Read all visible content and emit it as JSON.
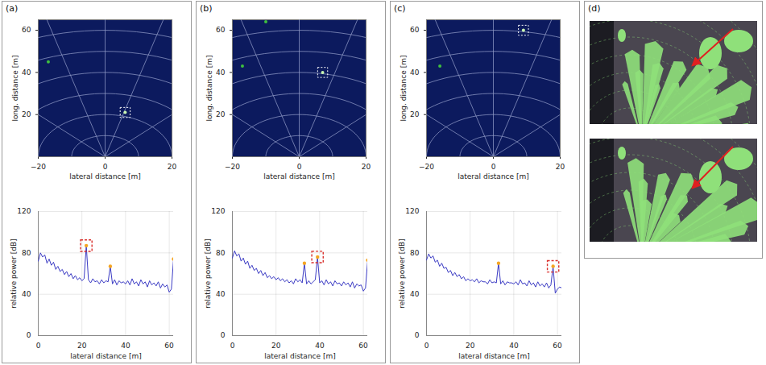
{
  "chart_data": [
    {
      "panel": "(a)",
      "type": "scatter",
      "xlabel": "lateral distance [m]",
      "ylabel": "long. distance [m]",
      "xlim": [
        -20,
        20
      ],
      "ylim": [
        0,
        65
      ],
      "xticks": [
        -20,
        0,
        20
      ],
      "yticks": [
        20,
        40,
        60
      ],
      "range_rings": [
        10,
        20,
        30,
        40,
        50,
        60
      ],
      "beam_angles": [
        -45,
        -15,
        0,
        15,
        45
      ],
      "x": [
        6,
        -17
      ],
      "y": [
        21,
        45
      ],
      "colors": [
        "#c8f5b0",
        "#3fbf3f"
      ],
      "highlight": {
        "x": 6,
        "y": 21
      }
    },
    {
      "panel": "(a)",
      "type": "line",
      "xlabel": "lateral distance [m]",
      "ylabel": "relative power [dB]",
      "xlim": [
        0,
        62
      ],
      "ylim": [
        0,
        120
      ],
      "xticks": [
        0,
        20,
        40,
        60
      ],
      "yticks": [
        0,
        40,
        80,
        120
      ],
      "grid": true,
      "color": "#3b3bc4",
      "x": [
        0,
        1,
        2,
        3,
        4,
        5,
        6,
        7,
        8,
        9,
        10,
        11,
        12,
        13,
        14,
        15,
        16,
        17,
        18,
        19,
        20,
        21,
        22,
        23,
        24,
        25,
        26,
        27,
        28,
        29,
        30,
        31,
        32,
        33,
        34,
        35,
        36,
        37,
        38,
        39,
        40,
        41,
        42,
        43,
        44,
        45,
        46,
        47,
        48,
        49,
        50,
        51,
        52,
        53,
        54,
        55,
        56,
        57,
        58,
        59,
        60,
        61,
        62
      ],
      "values": [
        72,
        80,
        76,
        78,
        70,
        74,
        68,
        71,
        64,
        67,
        62,
        64,
        59,
        62,
        57,
        60,
        55,
        58,
        54,
        56,
        53,
        55,
        87,
        54,
        51,
        55,
        52,
        53,
        50,
        54,
        51,
        53,
        52,
        67,
        50,
        54,
        49,
        53,
        51,
        52,
        50,
        53,
        49,
        55,
        50,
        52,
        48,
        54,
        50,
        52,
        47,
        53,
        49,
        51,
        48,
        52,
        46,
        50,
        47,
        49,
        42,
        45,
        74
      ],
      "peaks": {
        "x": [
          22,
          33,
          62
        ],
        "y": [
          87,
          67,
          74
        ],
        "color": "#f5a623"
      },
      "highlight": {
        "x": 22,
        "y": 87
      }
    },
    {
      "panel": "(b)",
      "type": "scatter",
      "xlabel": "lateral distance [m]",
      "ylabel": "long. distance [m]",
      "xlim": [
        -20,
        20
      ],
      "ylim": [
        0,
        65
      ],
      "xticks": [
        -20,
        0,
        20
      ],
      "yticks": [
        20,
        40,
        60
      ],
      "range_rings": [
        10,
        20,
        30,
        40,
        50,
        60
      ],
      "beam_angles": [
        -45,
        -15,
        0,
        15,
        45
      ],
      "x": [
        7,
        -17,
        -10
      ],
      "y": [
        40,
        43,
        64
      ],
      "colors": [
        "#c8f5b0",
        "#3fbf3f",
        "#3fbf3f"
      ],
      "highlight": {
        "x": 7,
        "y": 40
      }
    },
    {
      "panel": "(b)",
      "type": "line",
      "xlabel": "lateral distance [m]",
      "ylabel": "relative power [dB]",
      "xlim": [
        0,
        62
      ],
      "ylim": [
        0,
        120
      ],
      "xticks": [
        0,
        20,
        40,
        60
      ],
      "yticks": [
        0,
        40,
        80,
        120
      ],
      "grid": true,
      "color": "#3b3bc4",
      "x": [
        0,
        1,
        2,
        3,
        4,
        5,
        6,
        7,
        8,
        9,
        10,
        11,
        12,
        13,
        14,
        15,
        16,
        17,
        18,
        19,
        20,
        21,
        22,
        23,
        24,
        25,
        26,
        27,
        28,
        29,
        30,
        31,
        32,
        33,
        34,
        35,
        36,
        37,
        38,
        39,
        40,
        41,
        42,
        43,
        44,
        45,
        46,
        47,
        48,
        49,
        50,
        51,
        52,
        53,
        54,
        55,
        56,
        57,
        58,
        59,
        60,
        61,
        62
      ],
      "values": [
        75,
        82,
        77,
        79,
        72,
        75,
        69,
        72,
        65,
        68,
        63,
        65,
        60,
        63,
        58,
        61,
        56,
        58,
        55,
        57,
        54,
        56,
        53,
        55,
        52,
        54,
        51,
        53,
        50,
        55,
        52,
        54,
        51,
        70,
        50,
        53,
        50,
        52,
        54,
        76,
        51,
        53,
        49,
        54,
        50,
        52,
        48,
        53,
        50,
        51,
        48,
        52,
        49,
        51,
        47,
        52,
        46,
        50,
        48,
        49,
        43,
        46,
        73
      ],
      "peaks": {
        "x": [
          33,
          39,
          62
        ],
        "y": [
          70,
          76,
          73
        ],
        "color": "#f5a623"
      },
      "highlight": {
        "x": 39,
        "y": 76
      }
    },
    {
      "panel": "(c)",
      "type": "scatter",
      "xlabel": "lateral distance [m]",
      "ylabel": "long. distance [m]",
      "xlim": [
        -20,
        20
      ],
      "ylim": [
        0,
        65
      ],
      "xticks": [
        -20,
        0,
        20
      ],
      "yticks": [
        20,
        40,
        60
      ],
      "range_rings": [
        10,
        20,
        30,
        40,
        50,
        60
      ],
      "beam_angles": [
        -45,
        -15,
        0,
        15,
        45
      ],
      "x": [
        9,
        -16
      ],
      "y": [
        60,
        43
      ],
      "colors": [
        "#c8f5b0",
        "#3fbf3f"
      ],
      "highlight": {
        "x": 9,
        "y": 60
      }
    },
    {
      "panel": "(c)",
      "type": "line",
      "xlabel": "lateral distance [m]",
      "ylabel": "relative power [dB]",
      "xlim": [
        0,
        62
      ],
      "ylim": [
        0,
        120
      ],
      "xticks": [
        0,
        20,
        40,
        60
      ],
      "yticks": [
        0,
        40,
        80,
        120
      ],
      "grid": true,
      "color": "#3b3bc4",
      "x": [
        0,
        1,
        2,
        3,
        4,
        5,
        6,
        7,
        8,
        9,
        10,
        11,
        12,
        13,
        14,
        15,
        16,
        17,
        18,
        19,
        20,
        21,
        22,
        23,
        24,
        25,
        26,
        27,
        28,
        29,
        30,
        31,
        32,
        33,
        34,
        35,
        36,
        37,
        38,
        39,
        40,
        41,
        42,
        43,
        44,
        45,
        46,
        47,
        48,
        49,
        50,
        51,
        52,
        53,
        54,
        55,
        56,
        57,
        58,
        59,
        60,
        61,
        62
      ],
      "values": [
        73,
        79,
        75,
        77,
        71,
        73,
        67,
        70,
        65,
        66,
        61,
        63,
        58,
        61,
        57,
        59,
        55,
        57,
        53,
        55,
        53,
        54,
        52,
        55,
        51,
        53,
        52,
        52,
        50,
        54,
        51,
        52,
        51,
        70,
        50,
        53,
        49,
        52,
        51,
        51,
        50,
        52,
        49,
        54,
        50,
        51,
        48,
        53,
        49,
        51,
        47,
        52,
        48,
        50,
        47,
        51,
        46,
        49,
        67,
        41,
        45,
        47,
        46
      ],
      "peaks": {
        "x": [
          33,
          58
        ],
        "y": [
          70,
          67
        ],
        "color": "#f5a623"
      },
      "highlight": {
        "x": 58,
        "y": 67
      }
    }
  ],
  "photo": {
    "panel": "(d)"
  }
}
